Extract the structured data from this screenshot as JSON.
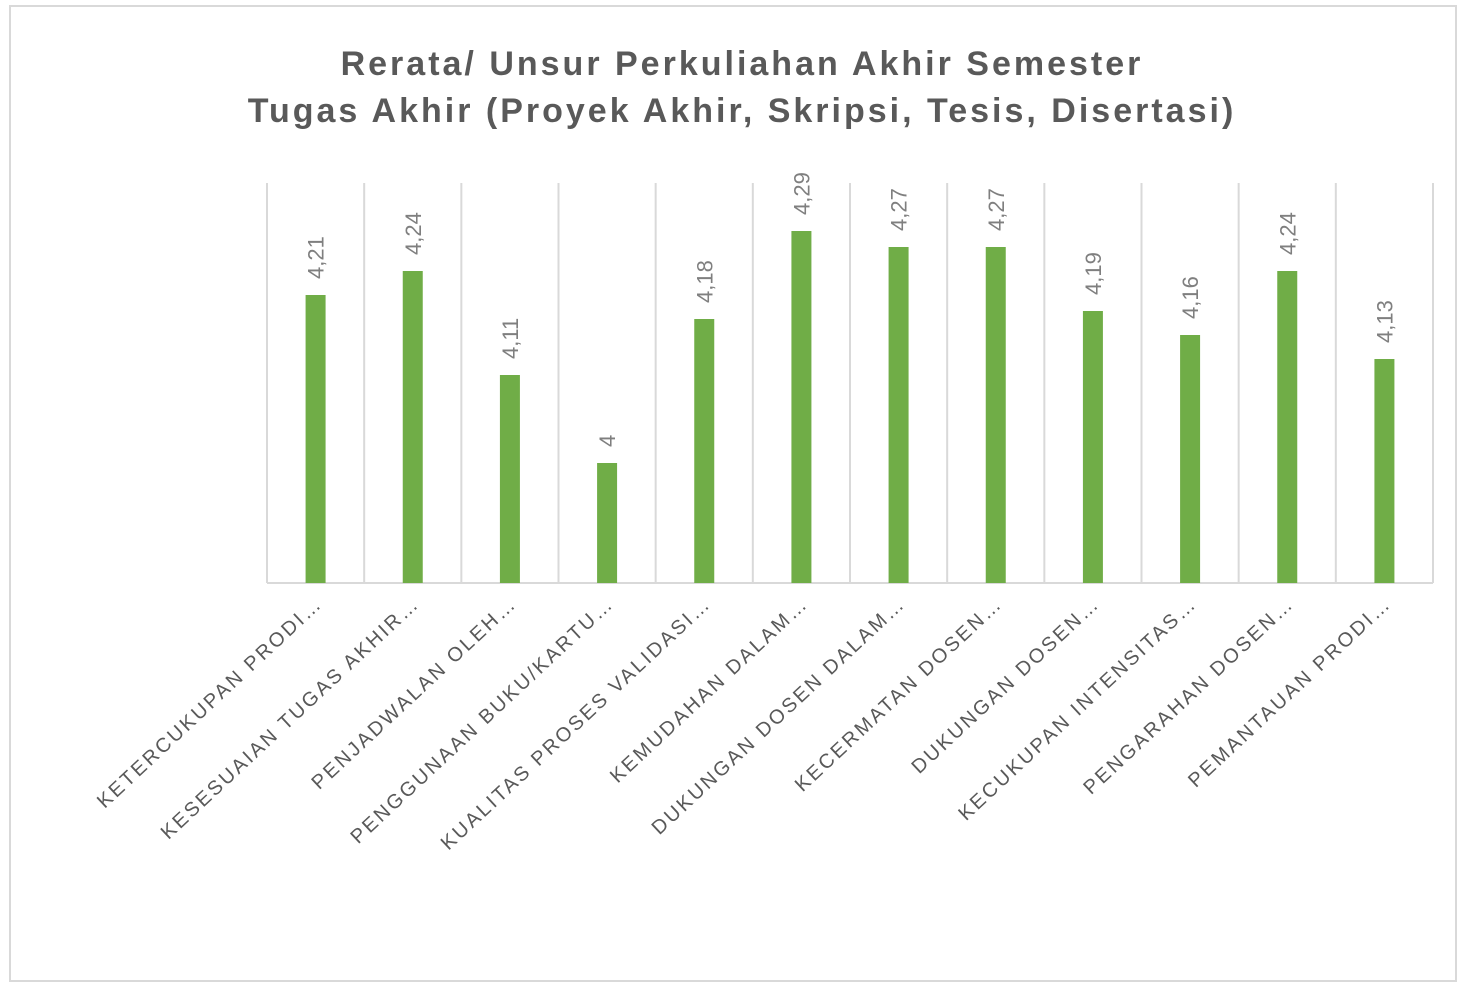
{
  "chart_data": {
    "type": "bar",
    "title": [
      "Rerata/ Unsur Perkuliahan Akhir Semester",
      "Tugas Akhir (Proyek Akhir, Skripsi, Tesis, Disertasi)"
    ],
    "categories": [
      "KETERCUKUPAN PRODI…",
      "KESESUAIAN TUGAS AKHIR…",
      "PENJADWALAN OLEH…",
      "PENGGUNAAN BUKU/KARTU…",
      "KUALITAS PROSES VALIDASI…",
      "KEMUDAHAN DALAM…",
      "DUKUNGAN DOSEN DALAM…",
      "KECERMATAN DOSEN…",
      "DUKUNGAN DOSEN…",
      "KECUKUPAN INTENSITAS…",
      "PENGARAHAN DOSEN…",
      "PEMANTAUAN PRODI…"
    ],
    "values": [
      4.21,
      4.24,
      4.11,
      4,
      4.18,
      4.29,
      4.27,
      4.27,
      4.19,
      4.16,
      4.24,
      4.13
    ],
    "value_labels": [
      "4,21",
      "4,24",
      "4,11",
      "4",
      "4,18",
      "4,29",
      "4,27",
      "4,27",
      "4,19",
      "4,16",
      "4,24",
      "4,13"
    ],
    "color": "#70ad47",
    "ylim": [
      3.85,
      4.35
    ]
  }
}
